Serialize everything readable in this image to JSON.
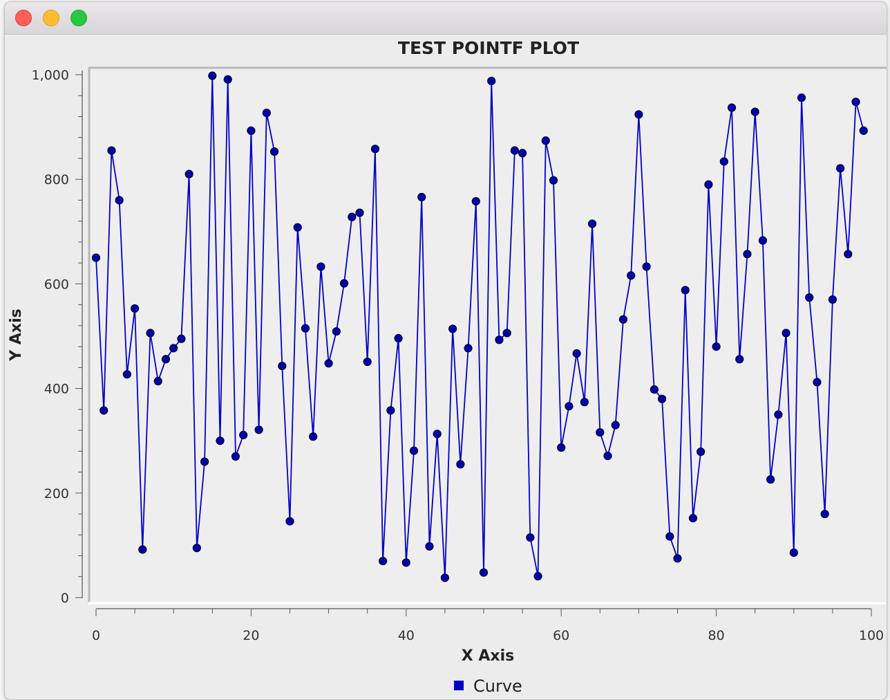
{
  "chart_data": {
    "type": "line",
    "title": "TEST POINTF PLOT",
    "xlabel": "X Axis",
    "ylabel": "Y Axis",
    "xlim": [
      0,
      100
    ],
    "ylim": [
      0,
      1000
    ],
    "x_ticks": [
      "0",
      "20",
      "40",
      "60",
      "80",
      "100"
    ],
    "y_ticks": [
      "0",
      "200",
      "400",
      "600",
      "800",
      "1,000"
    ],
    "legend_position": "bottom",
    "grid": false,
    "series": [
      {
        "name": "Curve",
        "color": "#0000c8",
        "marker_color": "#0000aa",
        "x": [
          0,
          1,
          2,
          3,
          4,
          5,
          6,
          7,
          8,
          9,
          10,
          11,
          12,
          13,
          14,
          15,
          16,
          17,
          18,
          19,
          20,
          21,
          22,
          23,
          24,
          25,
          26,
          27,
          28,
          29,
          30,
          31,
          32,
          33,
          34,
          35,
          36,
          37,
          38,
          39,
          40,
          41,
          42,
          43,
          44,
          45,
          46,
          47,
          48,
          49,
          50,
          51,
          52,
          53,
          54,
          55,
          56,
          57,
          58,
          59,
          60,
          61,
          62,
          63,
          64,
          65,
          66,
          67,
          68,
          69,
          70,
          71,
          72,
          73,
          74,
          75,
          76,
          77,
          78,
          79,
          80,
          81,
          82,
          83,
          84,
          85,
          86,
          87,
          88,
          89,
          90,
          91,
          92,
          93,
          94,
          95,
          96,
          97,
          98,
          99
        ],
        "y": [
          650,
          358,
          855,
          760,
          427,
          553,
          92,
          506,
          414,
          456,
          477,
          495,
          810,
          95,
          260,
          998,
          300,
          991,
          270,
          311,
          893,
          321,
          927,
          853,
          443,
          146,
          708,
          515,
          308,
          633,
          448,
          509,
          601,
          728,
          736,
          451,
          858,
          70,
          358,
          496,
          67,
          281,
          766,
          98,
          313,
          38,
          514,
          255,
          477,
          758,
          48,
          988,
          493,
          506,
          855,
          850,
          115,
          41,
          874,
          798,
          287,
          366,
          467,
          374,
          715,
          316,
          271,
          330,
          532,
          616,
          924,
          633,
          398,
          380,
          117,
          75,
          588,
          152,
          279,
          790,
          480,
          834,
          937,
          456,
          657,
          929,
          683,
          226,
          350,
          506,
          86,
          956,
          574,
          412,
          160,
          570,
          821,
          657,
          948,
          893
        ]
      }
    ]
  }
}
